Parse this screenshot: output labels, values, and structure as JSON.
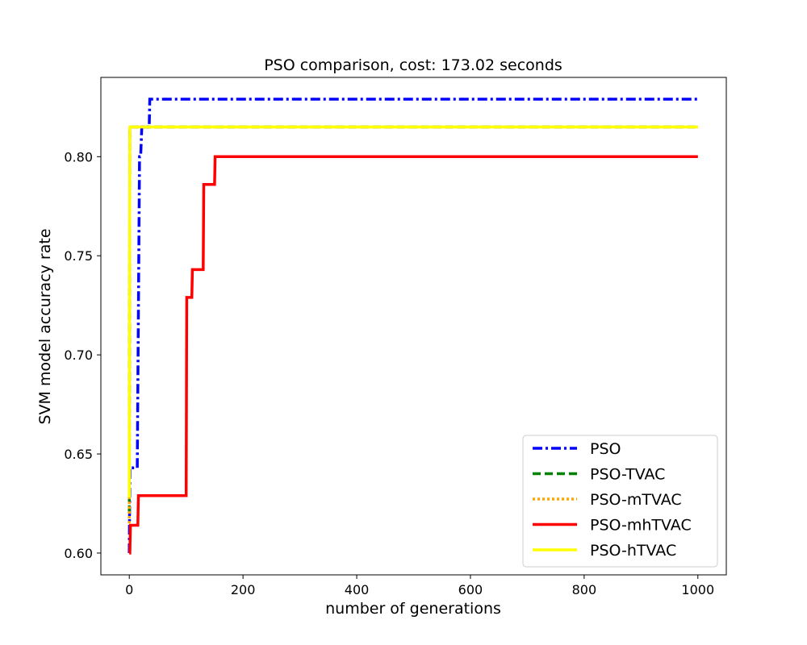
{
  "chart_data": {
    "type": "line",
    "title": "PSO comparison, cost: 173.02 seconds",
    "xlabel": "number of generations",
    "ylabel": "SVM model accuracy rate",
    "xlim": [
      -50,
      1050
    ],
    "ylim": [
      0.589,
      0.84
    ],
    "xticks": [
      0,
      200,
      400,
      600,
      800,
      1000
    ],
    "xtick_labels": [
      "0",
      "200",
      "400",
      "600",
      "800",
      "1000"
    ],
    "yticks": [
      0.6,
      0.65,
      0.7,
      0.75,
      0.8
    ],
    "ytick_labels": [
      "0.60",
      "0.65",
      "0.70",
      "0.75",
      "0.80"
    ],
    "grid": false,
    "legend_position": "bottom-right",
    "series": [
      {
        "name": "PSO",
        "color": "#0000ff",
        "linestyle": "dashdot",
        "x": [
          0,
          1,
          5,
          10,
          14,
          18,
          20,
          22,
          35,
          36,
          1000
        ],
        "y": [
          0.6,
          0.643,
          0.643,
          0.643,
          0.643,
          0.8,
          0.8,
          0.815,
          0.815,
          0.829,
          0.829
        ]
      },
      {
        "name": "PSO-TVAC",
        "color": "#008000",
        "linestyle": "dashed",
        "x": [
          0,
          1,
          2,
          1000
        ],
        "y": [
          0.62,
          0.815,
          0.815,
          0.815
        ]
      },
      {
        "name": "PSO-mTVAC",
        "color": "#ffa500",
        "linestyle": "dotted",
        "x": [
          0,
          1,
          2,
          1000
        ],
        "y": [
          0.615,
          0.815,
          0.815,
          0.815
        ]
      },
      {
        "name": "PSO-mhTVAC",
        "color": "#ff0000",
        "linestyle": "solid",
        "x": [
          0,
          1,
          2,
          15,
          16,
          100,
          101,
          110,
          111,
          130,
          131,
          150,
          151,
          1000
        ],
        "y": [
          0.6,
          0.6,
          0.614,
          0.614,
          0.629,
          0.629,
          0.729,
          0.729,
          0.743,
          0.743,
          0.786,
          0.786,
          0.8,
          0.8
        ]
      },
      {
        "name": "PSO-hTVAC",
        "color": "#ffff00",
        "linestyle": "solid",
        "x": [
          0,
          1,
          2,
          1000
        ],
        "y": [
          0.628,
          0.815,
          0.815,
          0.815
        ]
      }
    ]
  }
}
